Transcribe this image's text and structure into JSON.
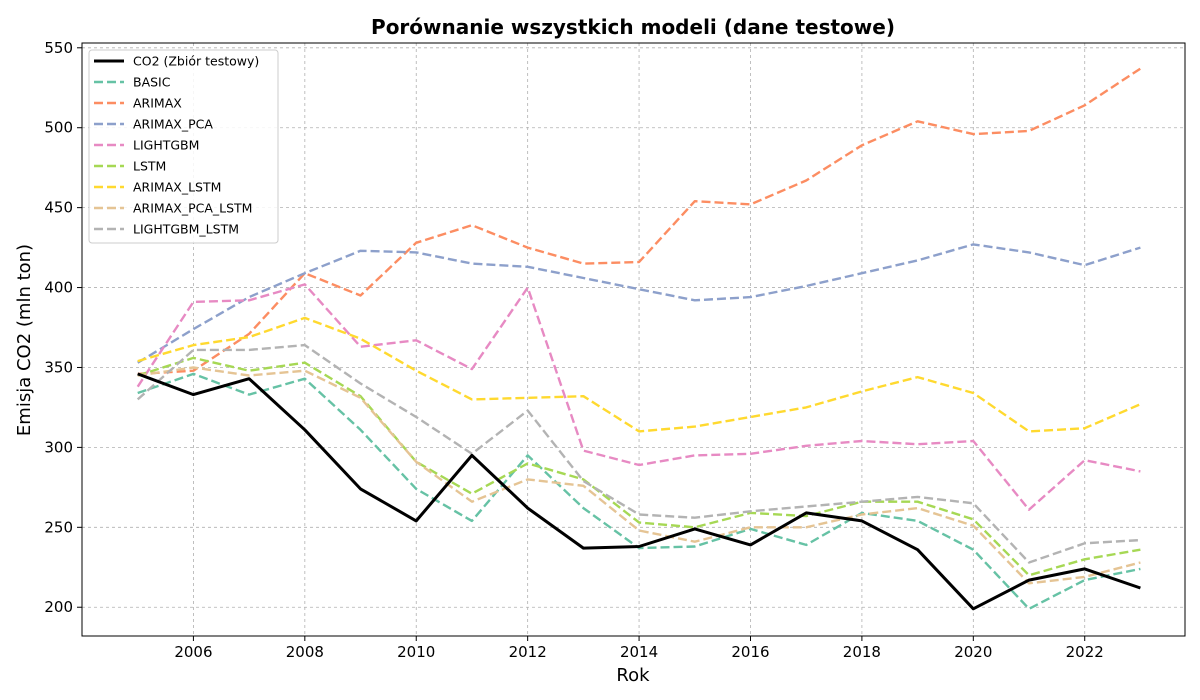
{
  "chart_data": {
    "type": "line",
    "title": "Porównanie wszystkich modeli (dane testowe)",
    "xlabel": "Rok",
    "ylabel": "Emisja CO2 (mln ton)",
    "xlim": [
      2004.0,
      2023.8
    ],
    "ylim": [
      182,
      553
    ],
    "xticks": [
      2006,
      2008,
      2010,
      2012,
      2014,
      2016,
      2018,
      2020,
      2022
    ],
    "yticks": [
      200,
      250,
      300,
      350,
      400,
      450,
      500,
      550
    ],
    "grid": true,
    "legend_position": "top-left",
    "x": [
      2005,
      2006,
      2007,
      2008,
      2009,
      2010,
      2011,
      2012,
      2013,
      2014,
      2015,
      2016,
      2017,
      2018,
      2019,
      2020,
      2021,
      2022,
      2023
    ],
    "series": [
      {
        "name": "CO2 (Zbiór testowy)",
        "color": "#000000",
        "style": "solid",
        "values": [
          346,
          333,
          343,
          311,
          274,
          254,
          295,
          262,
          237,
          238,
          249,
          239,
          259,
          254,
          236,
          199,
          217,
          224,
          212
        ]
      },
      {
        "name": "BASIC",
        "color": "#66c2a5",
        "style": "dashed",
        "values": [
          334,
          346,
          333,
          343,
          311,
          274,
          254,
          295,
          262,
          237,
          238,
          249,
          239,
          259,
          254,
          236,
          199,
          217,
          224
        ]
      },
      {
        "name": "ARIMAX",
        "color": "#fc8d62",
        "style": "dashed",
        "values": [
          346,
          348,
          371,
          409,
          395,
          428,
          439,
          425,
          415,
          416,
          454,
          452,
          467,
          489,
          504,
          496,
          498,
          514,
          537
        ]
      },
      {
        "name": "ARIMAX_PCA",
        "color": "#8da0cb",
        "style": "dashed",
        "values": [
          353,
          374,
          394,
          409,
          423,
          422,
          415,
          413,
          406,
          399,
          392,
          394,
          401,
          409,
          417,
          427,
          422,
          414,
          425
        ]
      },
      {
        "name": "LIGHTGBM",
        "color": "#e78ac3",
        "style": "dashed",
        "values": [
          338,
          391,
          392,
          402,
          363,
          367,
          349,
          400,
          298,
          289,
          295,
          296,
          301,
          304,
          302,
          304,
          261,
          292,
          285
        ]
      },
      {
        "name": "LSTM",
        "color": "#a6d854",
        "style": "dashed",
        "values": [
          345,
          356,
          348,
          353,
          332,
          291,
          271,
          290,
          280,
          253,
          250,
          259,
          257,
          266,
          266,
          255,
          220,
          230,
          236
        ]
      },
      {
        "name": "ARIMAX_LSTM",
        "color": "#ffd92f",
        "style": "dashed",
        "values": [
          354,
          364,
          369,
          381,
          368,
          348,
          330,
          331,
          332,
          310,
          313,
          319,
          325,
          335,
          344,
          334,
          310,
          312,
          327
        ]
      },
      {
        "name": "ARIMAX_PCA_LSTM",
        "color": "#e5c494",
        "style": "dashed",
        "values": [
          345,
          350,
          345,
          348,
          331,
          291,
          266,
          280,
          276,
          248,
          241,
          250,
          250,
          258,
          262,
          251,
          215,
          219,
          228
        ]
      },
      {
        "name": "LIGHTGBM_LSTM",
        "color": "#b3b3b3",
        "style": "dashed",
        "values": [
          330,
          361,
          361,
          364,
          340,
          319,
          296,
          323,
          279,
          258,
          256,
          260,
          263,
          266,
          269,
          265,
          228,
          240,
          242
        ]
      }
    ]
  }
}
